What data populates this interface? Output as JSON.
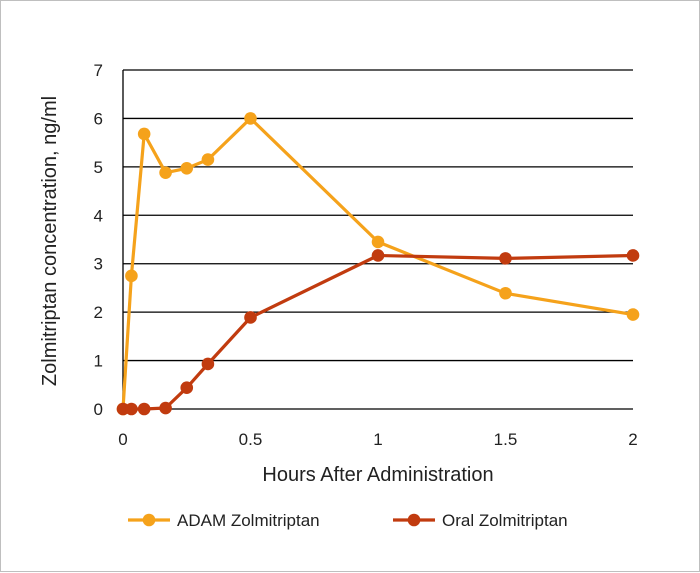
{
  "chart_data": {
    "type": "line",
    "title": "",
    "xlabel": "Hours After Administration",
    "ylabel": "Zolmitriptan concentration, ng/ml",
    "xlim": [
      0,
      2
    ],
    "ylim": [
      0,
      7
    ],
    "xticks": [
      "0",
      "0.5",
      "1",
      "1.5",
      "2"
    ],
    "yticks": [
      "0",
      "1",
      "2",
      "3",
      "4",
      "5",
      "6",
      "7"
    ],
    "grid": "horizontal",
    "legend_position": "bottom",
    "series": [
      {
        "name": "ADAM Zolmitriptan",
        "color": "#f5a21b",
        "x": [
          0,
          0.033,
          0.083,
          0.167,
          0.25,
          0.333,
          0.5,
          1,
          1.5,
          2
        ],
        "y": [
          0,
          2.75,
          5.68,
          4.88,
          4.97,
          5.15,
          6.0,
          3.45,
          2.39,
          1.95
        ]
      },
      {
        "name": "Oral Zolmitriptan",
        "color": "#c13b0f",
        "x": [
          0,
          0.033,
          0.083,
          0.167,
          0.25,
          0.333,
          0.5,
          1,
          1.5,
          2
        ],
        "y": [
          0,
          0,
          0,
          0.02,
          0.44,
          0.93,
          1.89,
          3.17,
          3.11,
          3.17
        ]
      }
    ]
  }
}
